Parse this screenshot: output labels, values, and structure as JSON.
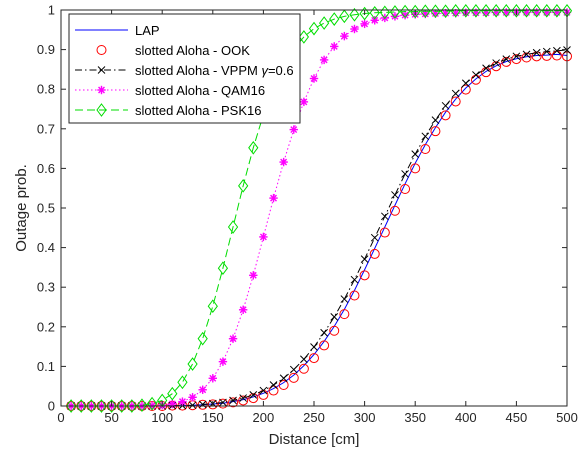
{
  "chart_data": {
    "type": "line",
    "xlabel": "Distance [cm]",
    "ylabel": "Outage prob.",
    "xlim": [
      0,
      500
    ],
    "ylim": [
      0,
      1
    ],
    "xticks": [
      0,
      50,
      100,
      150,
      200,
      250,
      300,
      350,
      400,
      450,
      500
    ],
    "yticks": [
      0,
      0.1,
      0.2,
      0.3,
      0.4,
      0.5,
      0.6,
      0.7,
      0.8,
      0.9,
      1
    ],
    "xtick_labels": [
      "0",
      "50",
      "100",
      "150",
      "200",
      "250",
      "300",
      "350",
      "400",
      "450",
      "500"
    ],
    "ytick_labels": [
      "0",
      "0.1",
      "0.2",
      "0.3",
      "0.4",
      "0.5",
      "0.6",
      "0.7",
      "0.8",
      "0.9",
      "1"
    ],
    "grid": false,
    "legend_position": "top-left",
    "x": [
      10,
      20,
      30,
      40,
      50,
      60,
      70,
      80,
      90,
      100,
      110,
      120,
      130,
      140,
      150,
      160,
      170,
      180,
      190,
      200,
      210,
      220,
      230,
      240,
      250,
      260,
      270,
      280,
      290,
      300,
      310,
      320,
      330,
      340,
      350,
      360,
      370,
      380,
      390,
      400,
      410,
      420,
      430,
      440,
      450,
      460,
      470,
      480,
      490,
      500
    ],
    "series": [
      {
        "name": "LAP",
        "color": "#0000ff",
        "line": "solid",
        "marker": "none",
        "values": [
          0,
          0,
          0,
          0,
          0,
          0,
          0,
          0,
          0,
          0,
          0.001,
          0.001,
          0.002,
          0.003,
          0.005,
          0.007,
          0.011,
          0.016,
          0.023,
          0.032,
          0.044,
          0.059,
          0.078,
          0.102,
          0.13,
          0.163,
          0.201,
          0.244,
          0.292,
          0.344,
          0.398,
          0.452,
          0.507,
          0.561,
          0.613,
          0.66,
          0.703,
          0.742,
          0.775,
          0.803,
          0.826,
          0.845,
          0.859,
          0.87,
          0.877,
          0.882,
          0.885,
          0.886,
          0.888,
          0.885
        ]
      },
      {
        "name": "slotted Aloha - OOK",
        "color": "#ff0000",
        "line": "none",
        "marker": "circle",
        "values": [
          0,
          0,
          0,
          0,
          0,
          0,
          0,
          0,
          0,
          0,
          0.001,
          0.001,
          0.002,
          0.003,
          0.004,
          0.006,
          0.009,
          0.014,
          0.02,
          0.028,
          0.039,
          0.053,
          0.071,
          0.094,
          0.121,
          0.153,
          0.19,
          0.232,
          0.279,
          0.33,
          0.384,
          0.438,
          0.493,
          0.548,
          0.6,
          0.649,
          0.694,
          0.734,
          0.769,
          0.799,
          0.824,
          0.843,
          0.858,
          0.869,
          0.876,
          0.88,
          0.883,
          0.884,
          0.885,
          0.883
        ]
      },
      {
        "name": "slotted Aloha - VPPM γ=0.6",
        "color": "#000000",
        "line": "dashdot",
        "marker": "x-star",
        "values": [
          0,
          0,
          0,
          0,
          0,
          0,
          0,
          0,
          0,
          0,
          0.001,
          0.001,
          0.002,
          0.004,
          0.006,
          0.009,
          0.014,
          0.02,
          0.028,
          0.039,
          0.053,
          0.07,
          0.092,
          0.118,
          0.149,
          0.185,
          0.225,
          0.27,
          0.319,
          0.371,
          0.425,
          0.479,
          0.533,
          0.586,
          0.636,
          0.681,
          0.722,
          0.758,
          0.789,
          0.815,
          0.836,
          0.853,
          0.866,
          0.876,
          0.883,
          0.888,
          0.892,
          0.895,
          0.897,
          0.899
        ]
      },
      {
        "name": "slotted Aloha - QAM16",
        "color": "#ff00ff",
        "line": "dotted",
        "marker": "asterisk",
        "values": [
          0,
          0,
          0,
          0,
          0,
          0,
          0,
          0,
          0.001,
          0.002,
          0.005,
          0.011,
          0.022,
          0.041,
          0.07,
          0.112,
          0.17,
          0.243,
          0.33,
          0.427,
          0.525,
          0.616,
          0.698,
          0.768,
          0.827,
          0.874,
          0.908,
          0.934,
          0.952,
          0.965,
          0.974,
          0.98,
          0.984,
          0.987,
          0.989,
          0.99,
          0.991,
          0.992,
          0.992,
          0.993,
          0.993,
          0.993,
          0.994,
          0.994,
          0.994,
          0.994,
          0.994,
          0.994,
          0.994,
          0.994
        ]
      },
      {
        "name": "slotted Aloha - PSK16",
        "color": "#00dd00",
        "line": "dashed",
        "marker": "diamond",
        "values": [
          0,
          0,
          0,
          0,
          0,
          0,
          0,
          0.002,
          0.006,
          0.014,
          0.031,
          0.06,
          0.106,
          0.17,
          0.252,
          0.348,
          0.452,
          0.556,
          0.652,
          0.736,
          0.806,
          0.861,
          0.902,
          0.932,
          0.953,
          0.967,
          0.977,
          0.984,
          0.988,
          0.991,
          0.993,
          0.994,
          0.995,
          0.996,
          0.996,
          0.997,
          0.997,
          0.997,
          0.998,
          0.998,
          0.998,
          0.998,
          0.998,
          0.998,
          0.998,
          0.998,
          0.998,
          0.998,
          0.998,
          0.998
        ]
      }
    ],
    "legend": {
      "entries": [
        {
          "text": "LAP"
        },
        {
          "text": "slotted Aloha - OOK"
        },
        {
          "text": "slotted Aloha - VPPM ",
          "gamma_symbol": "γ",
          "gamma_value": "=0.6"
        },
        {
          "text": "slotted Aloha - QAM16"
        },
        {
          "text": "slotted Aloha - PSK16"
        }
      ]
    }
  }
}
